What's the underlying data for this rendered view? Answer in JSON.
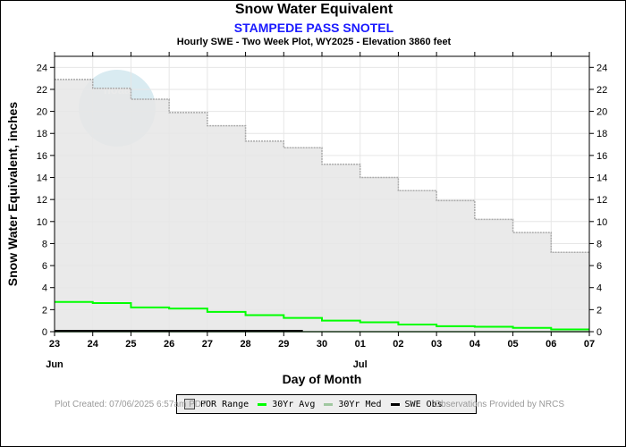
{
  "chart_data": {
    "type": "line",
    "title": "Snow Water Equivalent",
    "subtitle": "STAMPEDE PASS SNOTEL",
    "subtitle2": "Hourly SWE - Two Week Plot, WY2025 -  Elevation 3860 feet",
    "xlabel": "Day of Month",
    "ylabel": "Snow Water Equivalent, inches",
    "x_ticks": [
      "23",
      "24",
      "25",
      "26",
      "27",
      "28",
      "29",
      "30",
      "01",
      "02",
      "03",
      "04",
      "05",
      "06",
      "07"
    ],
    "month_labels": [
      {
        "label": "Jun",
        "at": 0
      },
      {
        "label": "Jul",
        "at": 8
      }
    ],
    "ylim": [
      0,
      25
    ],
    "y_ticks": [
      0,
      2,
      4,
      6,
      8,
      10,
      12,
      14,
      16,
      18,
      20,
      22,
      24
    ],
    "series": [
      {
        "name": "POR Range",
        "type": "step-area",
        "values": [
          22.9,
          22.1,
          21.1,
          19.9,
          18.7,
          17.3,
          16.7,
          15.2,
          14.0,
          12.8,
          11.9,
          10.2,
          9.0,
          7.2
        ]
      },
      {
        "name": "30Yr Avg",
        "type": "step",
        "color": "#00ff00",
        "values": [
          2.7,
          2.6,
          2.2,
          2.1,
          1.8,
          1.5,
          1.25,
          1.0,
          0.85,
          0.65,
          0.5,
          0.45,
          0.35,
          0.2
        ]
      },
      {
        "name": "30Yr Med",
        "type": "step",
        "color": "#a0c8a0",
        "values": [
          0,
          0,
          0,
          0,
          0,
          0,
          0,
          0,
          0,
          0,
          0,
          0,
          0,
          0
        ]
      },
      {
        "name": "SWE Obs",
        "type": "line",
        "color": "#000000",
        "x": [
          0,
          6.5
        ],
        "values": [
          0,
          0
        ]
      }
    ],
    "legend": [
      "POR Range",
      "30Yr Avg",
      "30Yr Med",
      "SWE Obs"
    ],
    "legend_position": "bottom",
    "grid": true
  },
  "footer": {
    "left": "Plot Created: 07/06/2025 6:57am PDT",
    "right": "Observations Provided by NRCS"
  },
  "watermark": "noaa"
}
